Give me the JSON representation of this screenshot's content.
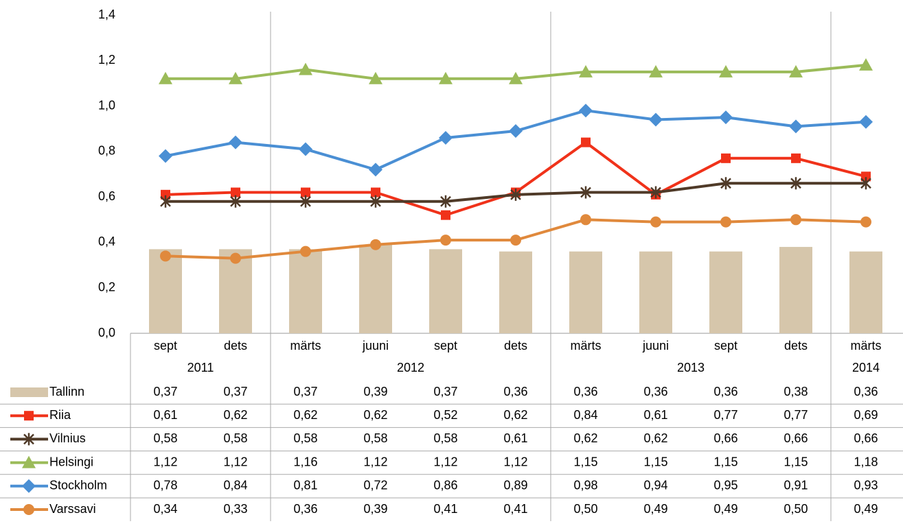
{
  "chart_data": {
    "type": "combo",
    "categories": [
      "sept",
      "dets",
      "märts",
      "juuni",
      "sept",
      "dets",
      "märts",
      "juuni",
      "sept",
      "dets",
      "märts"
    ],
    "years": [
      "2011",
      null,
      "2012",
      null,
      null,
      null,
      "2013",
      null,
      null,
      null,
      "2014"
    ],
    "ylim": [
      0,
      1.4
    ],
    "yticks": [
      {
        "value": 0,
        "label": "0,0"
      },
      {
        "value": 0.2,
        "label": "0,2"
      },
      {
        "value": 0.4,
        "label": "0,4"
      },
      {
        "value": 0.6,
        "label": "0,6"
      },
      {
        "value": 0.8,
        "label": "0,8"
      },
      {
        "value": 1.0,
        "label": "1,0"
      },
      {
        "value": 1.2,
        "label": "1,2"
      },
      {
        "value": 1.4,
        "label": "1,4"
      }
    ],
    "series": [
      {
        "name": "Tallinn",
        "type": "bar",
        "color": "#d6c6ab",
        "values": [
          0.37,
          0.37,
          0.37,
          0.39,
          0.37,
          0.36,
          0.36,
          0.36,
          0.36,
          0.38,
          0.36
        ],
        "value_labels": [
          "0,37",
          "0,37",
          "0,37",
          "0,39",
          "0,37",
          "0,36",
          "0,36",
          "0,36",
          "0,36",
          "0,38",
          "0,36"
        ]
      },
      {
        "name": "Riia",
        "type": "line",
        "marker": "square",
        "color": "#f0321a",
        "values": [
          0.61,
          0.62,
          0.62,
          0.62,
          0.52,
          0.62,
          0.84,
          0.61,
          0.77,
          0.77,
          0.69
        ],
        "value_labels": [
          "0,61",
          "0,62",
          "0,62",
          "0,62",
          "0,52",
          "0,62",
          "0,84",
          "0,61",
          "0,77",
          "0,77",
          "0,69"
        ]
      },
      {
        "name": "Vilnius",
        "type": "line",
        "marker": "star",
        "color": "#4f3a28",
        "values": [
          0.58,
          0.58,
          0.58,
          0.58,
          0.58,
          0.61,
          0.62,
          0.62,
          0.66,
          0.66,
          0.66
        ],
        "value_labels": [
          "0,58",
          "0,58",
          "0,58",
          "0,58",
          "0,58",
          "0,61",
          "0,62",
          "0,62",
          "0,66",
          "0,66",
          "0,66"
        ]
      },
      {
        "name": "Helsingi",
        "type": "line",
        "marker": "triangle",
        "color": "#9bbb59",
        "values": [
          1.12,
          1.12,
          1.16,
          1.12,
          1.12,
          1.12,
          1.15,
          1.15,
          1.15,
          1.15,
          1.18
        ],
        "value_labels": [
          "1,12",
          "1,12",
          "1,16",
          "1,12",
          "1,12",
          "1,12",
          "1,15",
          "1,15",
          "1,15",
          "1,15",
          "1,18"
        ]
      },
      {
        "name": "Stockholm",
        "type": "line",
        "marker": "diamond",
        "color": "#4a8fd4",
        "values": [
          0.78,
          0.84,
          0.81,
          0.72,
          0.86,
          0.89,
          0.98,
          0.94,
          0.95,
          0.91,
          0.93
        ],
        "value_labels": [
          "0,78",
          "0,84",
          "0,81",
          "0,72",
          "0,86",
          "0,89",
          "0,98",
          "0,94",
          "0,95",
          "0,91",
          "0,93"
        ]
      },
      {
        "name": "Varssavi",
        "type": "line",
        "marker": "circle",
        "color": "#e0893c",
        "values": [
          0.34,
          0.33,
          0.36,
          0.39,
          0.41,
          0.41,
          0.5,
          0.49,
          0.49,
          0.5,
          0.49
        ],
        "value_labels": [
          "0,34",
          "0,33",
          "0,36",
          "0,39",
          "0,41",
          "0,41",
          "0,50",
          "0,49",
          "0,49",
          "0,50",
          "0,49"
        ]
      }
    ]
  }
}
